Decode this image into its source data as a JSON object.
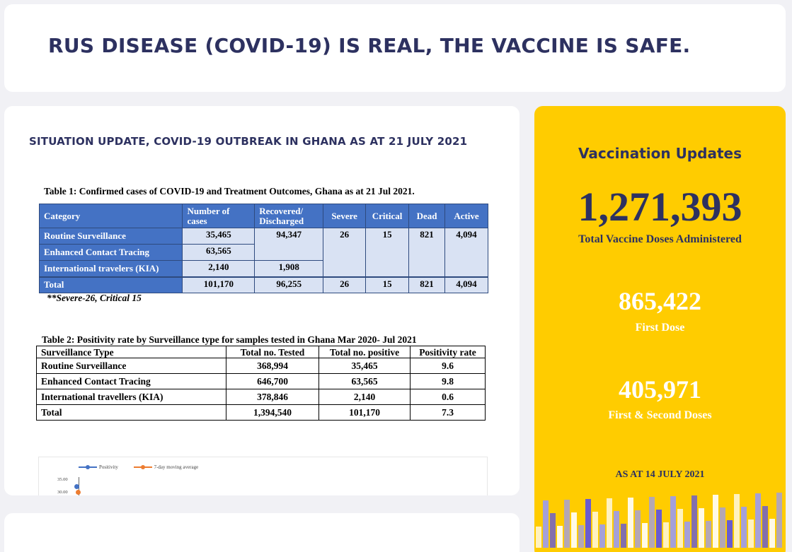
{
  "banner": {
    "text": "RUS DISEASE (COVID-19) IS REAL, THE VACCINE IS SAFE."
  },
  "situation": {
    "title": "SITUATION UPDATE, COVID-19 OUTBREAK IN GHANA AS AT 21 JULY 2021",
    "table1": {
      "caption": "Table 1: Confirmed cases of COVID-19 and Treatment Outcomes, Ghana as at 21 Jul 2021.",
      "headers": [
        "Category",
        "Number of cases",
        "Recovered/ Discharged",
        "Severe",
        "Critical",
        "Dead",
        "Active"
      ],
      "rows": [
        {
          "category": "Routine Surveillance",
          "cases": "35,465",
          "recovered": "94,347",
          "severe": "26",
          "critical": "15",
          "dead": "821",
          "active": "4,094"
        },
        {
          "category": "Enhanced Contact Tracing",
          "cases": "63,565"
        },
        {
          "category": "International travelers (KIA)",
          "cases": "2,140",
          "recovered": "1,908"
        }
      ],
      "total": {
        "category": "Total",
        "cases": "101,170",
        "recovered": "96,255",
        "severe": "26",
        "critical": "15",
        "dead": "821",
        "active": "4,094"
      },
      "note": "**Severe-26, Critical 15"
    },
    "table2": {
      "caption": "Table 2: Positivity rate by Surveillance type for samples tested in Ghana Mar 2020- Jul 2021",
      "headers": [
        "Surveillance Type",
        "Total no. Tested",
        "Total no. positive",
        "Positivity rate"
      ],
      "rows": [
        {
          "type": "Routine Surveillance",
          "tested": "368,994",
          "positive": "35,465",
          "rate": "9.6"
        },
        {
          "type": "Enhanced Contact Tracing",
          "tested": "646,700",
          "positive": "63,565",
          "rate": "9.8"
        },
        {
          "type": "International travellers (KIA)",
          "tested": "378,846",
          "positive": "2,140",
          "rate": "0.6"
        },
        {
          "type": "Total",
          "tested": "1,394,540",
          "positive": "101,170",
          "rate": "7.3"
        }
      ]
    },
    "chart": {
      "legend": [
        "Positivity",
        "7-day moving average"
      ],
      "yticks": [
        "35.00",
        "30.00"
      ],
      "colors": {
        "positivity": "#4472c4",
        "moving_average": "#ed7d31"
      }
    }
  },
  "vaccination": {
    "title": "Vaccination Updates",
    "total": "1,271,393",
    "total_label": "Total Vaccine Doses Administered",
    "first_dose": "865,422",
    "first_dose_label": "First Dose",
    "second_dose": "405,971",
    "second_dose_label": "First & Second Doses",
    "as_at": "AS AT 14 JULY 2021",
    "colors": {
      "background": "#ffcc00",
      "text": "#2d3160"
    }
  }
}
